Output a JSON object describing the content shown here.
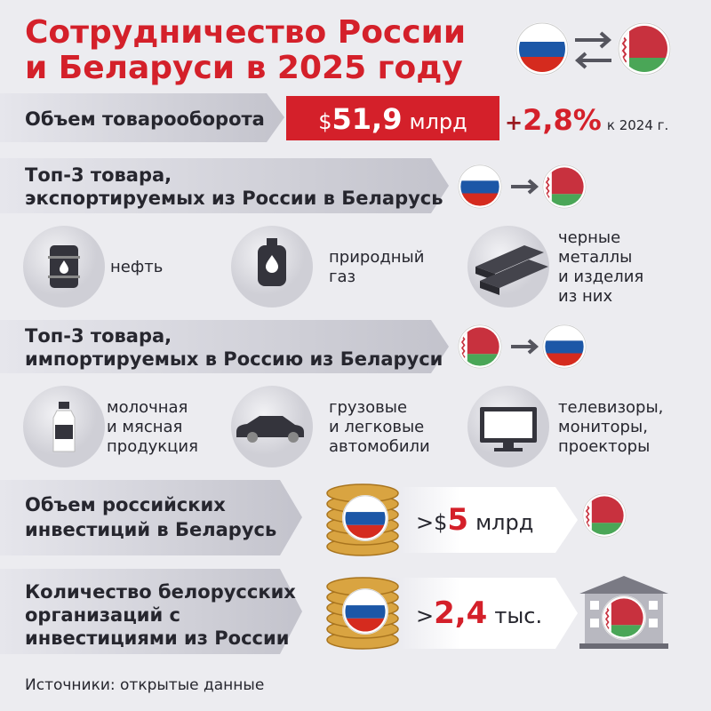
{
  "header": {
    "title_line1": "Сотрудничество России",
    "title_line2": "и Беларуси в 2025 году"
  },
  "trade": {
    "label": "Объем товарооборота",
    "value_prefix": "$",
    "value": "51,9",
    "value_unit": "млрд",
    "growth_sign": "+",
    "growth": "2,8%",
    "growth_note": "к 2024 г."
  },
  "exports": {
    "title_line1": "Топ-3 товара,",
    "title_line2": "экспортируемых из России в Беларусь",
    "items": [
      {
        "lines": [
          "нефть"
        ]
      },
      {
        "lines": [
          "природный",
          "газ"
        ]
      },
      {
        "lines": [
          "черные",
          "металлы",
          "и изделия",
          "из них"
        ]
      }
    ]
  },
  "imports": {
    "title_line1": "Топ-3 товара,",
    "title_line2": "импортируемых в Россию из Беларуси",
    "items": [
      {
        "lines": [
          "молочная",
          "и мясная",
          "продукция"
        ]
      },
      {
        "lines": [
          "грузовые",
          "и легковые",
          "автомобили"
        ]
      },
      {
        "lines": [
          "телевизоры,",
          "мониторы,",
          "проекторы"
        ]
      }
    ]
  },
  "investment": {
    "label_line1": "Объем российских",
    "label_line2": "инвестиций в Беларусь",
    "value_prefix": ">$",
    "value": "5",
    "value_unit": "млрд"
  },
  "organizations": {
    "label_line1": "Количество белорусских",
    "label_line2": "организаций с",
    "label_line3": "инвестициями из России",
    "value_prefix": ">",
    "value": "2,4",
    "value_unit": "тыс."
  },
  "footer": {
    "source": "Источники: открытые данные"
  }
}
